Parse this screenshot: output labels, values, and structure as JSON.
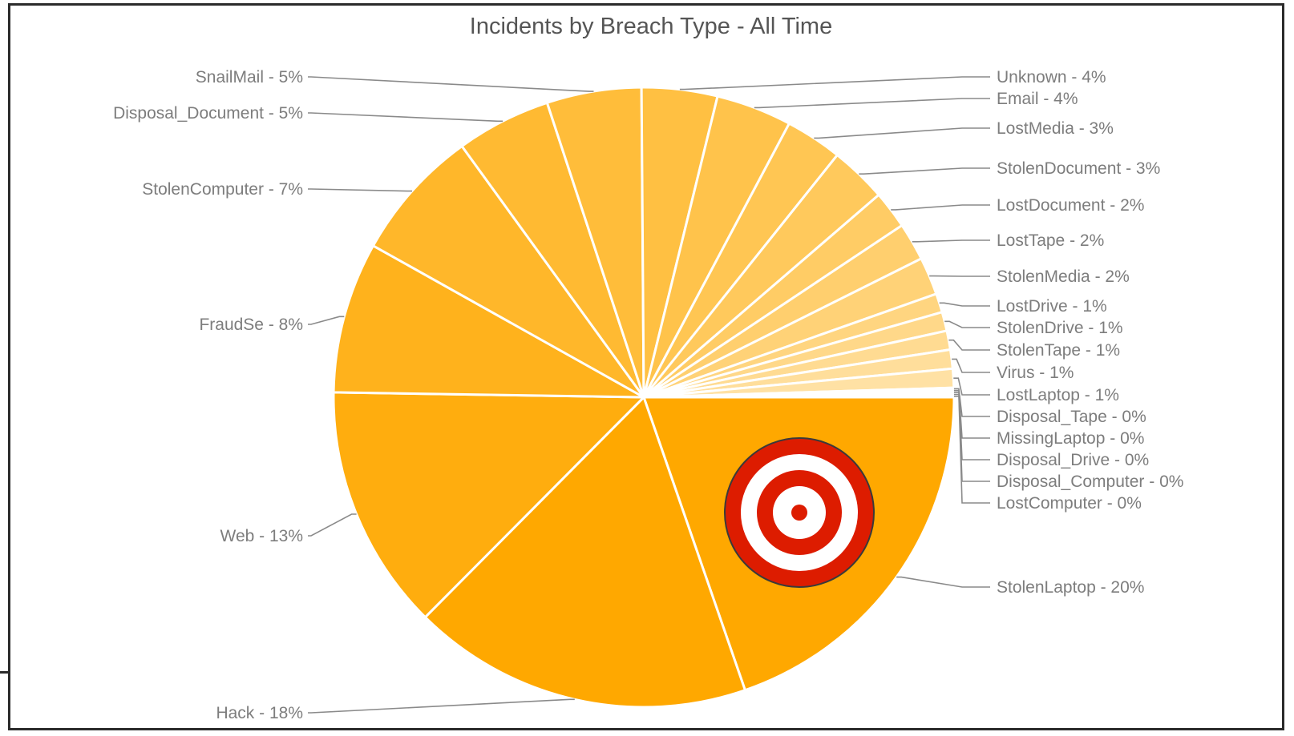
{
  "chart_data": {
    "type": "pie",
    "title": "Incidents by Breach Type - All Time",
    "slices": [
      {
        "label": "StolenLaptop - 20%",
        "value": 20,
        "color": "#ffa800"
      },
      {
        "label": "Hack - 18%",
        "value": 18,
        "color": "#ffa800"
      },
      {
        "label": "Web - 13%",
        "value": 13,
        "color": "#ffad0e"
      },
      {
        "label": "FraudSe - 8%",
        "value": 8,
        "color": "#ffb21c"
      },
      {
        "label": "StolenComputer - 7%",
        "value": 7,
        "color": "#ffb72a"
      },
      {
        "label": "Disposal_Document - 5%",
        "value": 5,
        "color": "#ffba32"
      },
      {
        "label": "SnailMail - 5%",
        "value": 5,
        "color": "#ffbd3a"
      },
      {
        "label": "Unknown - 4%",
        "value": 4,
        "color": "#ffc042"
      },
      {
        "label": "Email - 4%",
        "value": 4,
        "color": "#ffc34b"
      },
      {
        "label": "LostMedia - 3%",
        "value": 3,
        "color": "#ffc653"
      },
      {
        "label": "StolenDocument - 3%",
        "value": 3,
        "color": "#ffc95c"
      },
      {
        "label": "LostDocument - 2%",
        "value": 2,
        "color": "#ffcc65"
      },
      {
        "label": "LostTape - 2%",
        "value": 2,
        "color": "#ffcf6e"
      },
      {
        "label": "StolenMedia - 2%",
        "value": 2,
        "color": "#ffd277"
      },
      {
        "label": "LostDrive - 1%",
        "value": 1,
        "color": "#ffd580"
      },
      {
        "label": "StolenDrive - 1%",
        "value": 1,
        "color": "#ffd889"
      },
      {
        "label": "StolenTape - 1%",
        "value": 1,
        "color": "#ffdb92"
      },
      {
        "label": "Virus - 1%",
        "value": 1,
        "color": "#ffde9b"
      },
      {
        "label": "LostLaptop - 1%",
        "value": 1,
        "color": "#ffe1a4"
      },
      {
        "label": "Disposal_Tape - 0%",
        "value": 0,
        "color": "#ffe4ad"
      },
      {
        "label": "MissingLaptop - 0%",
        "value": 0,
        "color": "#ffe7b6"
      },
      {
        "label": "Disposal_Drive - 0%",
        "value": 0,
        "color": "#ffeabf"
      },
      {
        "label": "Disposal_Computer - 0%",
        "value": 0,
        "color": "#ffedc8"
      },
      {
        "label": "LostComputer - 0%",
        "value": 0,
        "color": "#fff0d1"
      }
    ],
    "target_marker_slice": "StolenLaptop - 20%",
    "target_colors": {
      "ring": "#dd1c00",
      "gap": "#ffffff",
      "outline": "#3a3a3a"
    }
  }
}
